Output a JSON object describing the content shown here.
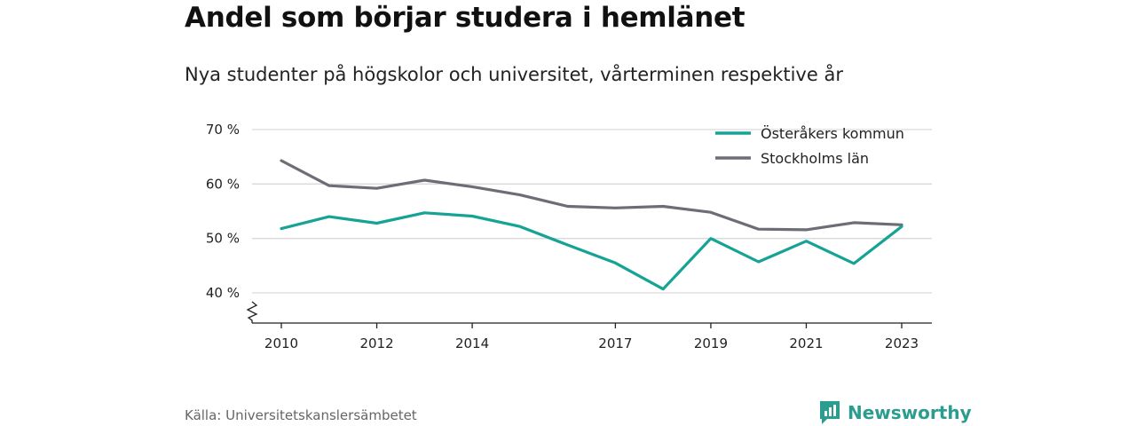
{
  "title": "Andel som börjar studera i hemlänet",
  "subtitle": "Nya studenter på högskolor och universitet, vårterminen respektive år",
  "source": "Källa: Universitetskanslersämbetet",
  "brand": {
    "name": "Newsworthy",
    "icon": "newsworthy-logo-icon"
  },
  "colors": {
    "teal": "#16a396",
    "gray": "#6e6d75",
    "grid": "#d9d9d9",
    "brand": "#2a9d8f"
  },
  "chart_data": {
    "type": "line",
    "x": [
      2010,
      2011,
      2012,
      2013,
      2014,
      2015,
      2016,
      2017,
      2018,
      2019,
      2020,
      2021,
      2022,
      2023
    ],
    "x_tick_labels": [
      "2010",
      "2012",
      "2014",
      "2017",
      "2019",
      "2021",
      "2023"
    ],
    "y_tick_labels": [
      "40 %",
      "50 %",
      "60 %",
      "70 %"
    ],
    "ylim": [
      40,
      70
    ],
    "y_axis_break": true,
    "grid": true,
    "legend_position": "top-right",
    "series": [
      {
        "name": "Österåkers kommun",
        "color": "#16a396",
        "values": [
          51.8,
          54.0,
          52.8,
          54.7,
          54.1,
          52.2,
          48.8,
          45.5,
          40.7,
          50.0,
          45.7,
          49.5,
          45.4,
          52.2
        ]
      },
      {
        "name": "Stockholms län",
        "color": "#6e6d75",
        "values": [
          64.3,
          59.7,
          59.2,
          60.7,
          59.5,
          58.0,
          55.9,
          55.6,
          55.9,
          54.8,
          51.7,
          51.6,
          52.9,
          52.5
        ]
      }
    ]
  }
}
